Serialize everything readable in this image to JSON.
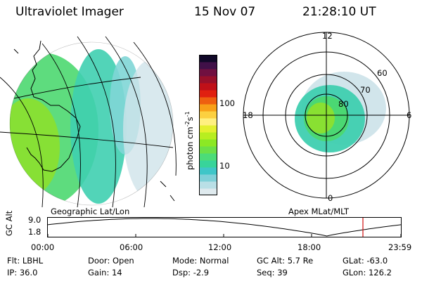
{
  "header": {
    "instrument": "Ultraviolet Imager",
    "date": "15 Nov 07",
    "time": "21:28:10 UT"
  },
  "colorbar": {
    "unit_label": "photon cm",
    "unit_sup1": "-2",
    "unit_mid": "s",
    "unit_sup2": "-1",
    "tick_100": "100",
    "tick_10": "10",
    "colors": [
      "#dfeaee",
      "#b9dfe6",
      "#7fd0d8",
      "#3fc6c8",
      "#38d49a",
      "#4cdc78",
      "#6ce048",
      "#8ce824",
      "#b8ee20",
      "#e4f030",
      "#fff080",
      "#fcd040",
      "#f8a018",
      "#ee6010",
      "#e02010",
      "#c01018",
      "#98102a",
      "#701040",
      "#401048",
      "#100828"
    ]
  },
  "geo_panel": {
    "caption": "Geographic Lat/Lon",
    "aurora_colors": [
      "#4cd870",
      "#6cdc50",
      "#8ce02e",
      "#3fcfb0",
      "#7fd6d6",
      "#cfe4ea"
    ]
  },
  "polar_panel": {
    "caption": "Apex MLat/MLT",
    "mlt_12": "12",
    "mlt_18": "18",
    "mlt_6": "6",
    "mlt_0": "0",
    "lat_60": "60",
    "lat_70": "70",
    "lat_80": "80"
  },
  "orbit_plot": {
    "ylabel": "GC Alt",
    "ymax_label": "9.0",
    "ymin_label": "1.8",
    "x_ticks": [
      "00:00",
      "06:00",
      "12:00",
      "18:00",
      "23:59"
    ],
    "marker_color": "#d01010"
  },
  "info": {
    "flt_label": "Flt:",
    "flt_value": "LBHL",
    "ip_label": "IP:",
    "ip_value": "36.0",
    "door_label": "Door:",
    "door_value": "Open",
    "gain_label": "Gain:",
    "gain_value": "14",
    "mode_label": "Mode:",
    "mode_value": "Normal",
    "dsp_label": "Dsp:",
    "dsp_value": "-2.9",
    "gcalt_label": "GC Alt:",
    "gcalt_value": "5.7 Re",
    "seq_label": "Seq:",
    "seq_value": "39",
    "glat_label": "GLat:",
    "glat_value": "-63.0",
    "glon_label": "GLon:",
    "glon_value": "126.2"
  }
}
